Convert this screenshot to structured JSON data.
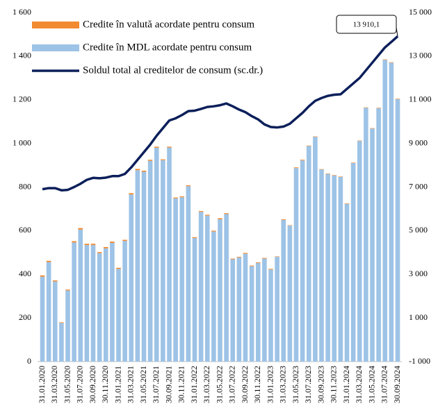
{
  "chart_data": {
    "type": "bar-line",
    "categories": [
      "31.01.2020",
      null,
      "31.03.2020",
      null,
      "31.05.2020",
      null,
      "31.07.2020",
      null,
      "30.09.2020",
      null,
      "30.11.2020",
      null,
      "31.01.2021",
      null,
      "31.03.2021",
      null,
      "31.05.2021",
      null,
      "31.07.2021",
      null,
      "30.09.2021",
      null,
      "30.11.2021",
      null,
      "31.01.2022",
      null,
      "31.03.2022",
      null,
      "31.05.2022",
      null,
      "31.07.2022",
      null,
      "30.09.2022",
      null,
      "30.11.2022",
      null,
      "31.01.2023",
      null,
      "31.03.2023",
      null,
      "31.05.2023",
      null,
      "31.07.2023",
      null,
      "30.09.2023",
      null,
      "30.11.2023",
      null,
      "31.01.2024",
      null,
      "31.03.2024",
      null,
      "31.05.2024",
      null,
      "31.07.2024",
      null,
      "30.09.2024"
    ],
    "series": [
      {
        "name": "Credite în valută acordate pentru consum",
        "color": "#f28a30",
        "stack": true,
        "values": [
          6,
          6,
          5,
          3,
          4,
          6,
          7,
          6,
          6,
          5,
          6,
          6,
          5,
          5,
          6,
          6,
          5,
          5,
          5,
          4,
          4,
          4,
          4,
          4,
          4,
          4,
          4,
          4,
          5,
          4,
          3,
          3,
          4,
          3,
          3,
          3,
          3,
          2,
          3,
          2,
          3,
          3,
          2,
          2,
          2,
          2,
          2,
          2,
          2,
          2,
          2,
          2,
          2,
          2,
          2,
          2,
          2
        ]
      },
      {
        "name": "Credite în MDL acordate pentru consum",
        "color": "#9dc3e6",
        "stack": true,
        "values": [
          389,
          456,
          367,
          177,
          326,
          546,
          605,
          534,
          534,
          497,
          519,
          544,
          425,
          553,
          766,
          877,
          870,
          920,
          980,
          923,
          981,
          748,
          753,
          804,
          566,
          686,
          669,
          596,
          652,
          676,
          469,
          477,
          494,
          437,
          452,
          472,
          422,
          480,
          649,
          623,
          887,
          922,
          988,
          1030,
          880,
          860,
          853,
          846,
          723,
          910,
          1011,
          1163,
          1068,
          1161,
          1383,
          1370,
          1203
        ]
      },
      {
        "name": "Soldul total al creditelor de consum (sc.dr.)",
        "color": "#0c1f5a",
        "axis": "y2",
        "line": true,
        "values": [
          6900,
          6950,
          6950,
          6850,
          6870,
          7000,
          7150,
          7330,
          7420,
          7400,
          7430,
          7500,
          7500,
          7600,
          7900,
          8250,
          8600,
          8950,
          9350,
          9700,
          10050,
          10150,
          10300,
          10480,
          10500,
          10580,
          10670,
          10700,
          10750,
          10830,
          10700,
          10550,
          10430,
          10250,
          10100,
          9870,
          9750,
          9730,
          9770,
          9900,
          10150,
          10400,
          10700,
          10950,
          11080,
          11180,
          11230,
          11250,
          11500,
          11750,
          12000,
          12350,
          12700,
          13050,
          13400,
          13650,
          13910.1
        ],
        "value_labels": [
          null,
          null,
          null,
          null,
          null,
          null,
          null,
          null,
          null,
          null,
          null,
          null,
          null,
          null,
          null,
          null,
          null,
          null,
          null,
          null,
          null,
          null,
          null,
          null,
          null,
          null,
          null,
          null,
          null,
          null,
          null,
          null,
          null,
          null,
          null,
          null,
          null,
          null,
          null,
          null,
          null,
          null,
          null,
          null,
          null,
          null,
          null,
          null,
          null,
          null,
          null,
          null,
          null,
          null,
          null,
          null,
          "13 910,1"
        ]
      }
    ],
    "ylim": [
      0,
      1600
    ],
    "yticks": [
      0,
      200,
      400,
      600,
      800,
      {
        "value": 1000,
        "label": "1 000"
      },
      {
        "value": 1200,
        "label": "1 200"
      },
      {
        "value": 1400,
        "label": "1 400"
      },
      {
        "value": 1600,
        "label": "1 600"
      }
    ],
    "y2lim": [
      -1000,
      15000
    ],
    "y2ticks": [
      {
        "value": -1000,
        "label": "-1 000"
      },
      {
        "value": 1000,
        "label": "1 000"
      },
      {
        "value": 3000,
        "label": "3 000"
      },
      {
        "value": 5000,
        "label": "5 000"
      },
      {
        "value": 7000,
        "label": "7 000"
      },
      {
        "value": 9000,
        "label": "9 000"
      },
      {
        "value": 11000,
        "label": "11 000"
      },
      {
        "value": 13000,
        "label": "13 000"
      },
      {
        "value": 15000,
        "label": "15 000"
      }
    ],
    "grid": false
  }
}
